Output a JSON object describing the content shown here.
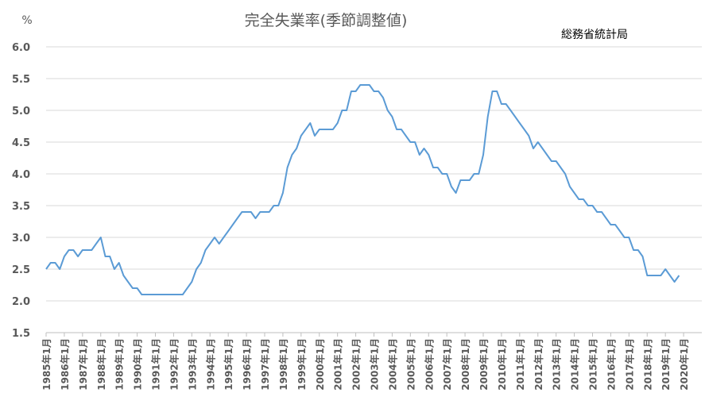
{
  "chart_data": {
    "type": "line",
    "title": "完全失業率(季節調整値)",
    "source": "総務省統計局",
    "unit": "%",
    "ylim": [
      1.5,
      6.0
    ],
    "y_ticks": [
      "6.0",
      "5.5",
      "5.0",
      "4.5",
      "4.0",
      "3.5",
      "3.0",
      "2.5",
      "2.0",
      "1.5"
    ],
    "x_ticks": [
      "1985年1月",
      "1986年1月",
      "1987年1月",
      "1988年1月",
      "1989年1月",
      "1990年1月",
      "1991年1月",
      "1992年1月",
      "1993年1月",
      "1994年1月",
      "1995年1月",
      "1996年1月",
      "1997年1月",
      "1998年1月",
      "1999年1月",
      "2000年1月",
      "2001年1月",
      "2002年1月",
      "2003年1月",
      "2004年1月",
      "2005年1月",
      "2006年1月",
      "2007年1月",
      "2008年1月",
      "2009年1月",
      "2010年1月",
      "2011年1月",
      "2012年1月",
      "2013年1月",
      "2014年1月",
      "2015年1月",
      "2016年1月",
      "2017年1月",
      "2018年1月",
      "2019年1月",
      "2020年1月"
    ],
    "grid": "horizontal",
    "line_color": "#5b9bd5",
    "series": [
      {
        "x": [
          "1985-01",
          "1985-04",
          "1985-07",
          "1985-10",
          "1986-01",
          "1986-04",
          "1986-07",
          "1986-10",
          "1987-01",
          "1987-04",
          "1987-07",
          "1987-10",
          "1988-01",
          "1988-04",
          "1988-07",
          "1988-10",
          "1989-01",
          "1989-04",
          "1989-07",
          "1989-10",
          "1990-01",
          "1990-04",
          "1990-07",
          "1990-10",
          "1991-01",
          "1991-04",
          "1991-07",
          "1991-10",
          "1992-01",
          "1992-04",
          "1992-07",
          "1992-10",
          "1993-01",
          "1993-04",
          "1993-07",
          "1993-10",
          "1994-01",
          "1994-04",
          "1994-07",
          "1994-10",
          "1995-01",
          "1995-04",
          "1995-07",
          "1995-10",
          "1996-01",
          "1996-04",
          "1996-07",
          "1996-10",
          "1997-01",
          "1997-04",
          "1997-07",
          "1997-10",
          "1998-01",
          "1998-04",
          "1998-07",
          "1998-10",
          "1999-01",
          "1999-04",
          "1999-07",
          "1999-10",
          "2000-01",
          "2000-04",
          "2000-07",
          "2000-10",
          "2001-01",
          "2001-04",
          "2001-07",
          "2001-10",
          "2002-01",
          "2002-04",
          "2002-07",
          "2002-10",
          "2003-01",
          "2003-04",
          "2003-07",
          "2003-10",
          "2004-01",
          "2004-04",
          "2004-07",
          "2004-10",
          "2005-01",
          "2005-04",
          "2005-07",
          "2005-10",
          "2006-01",
          "2006-04",
          "2006-07",
          "2006-10",
          "2007-01",
          "2007-04",
          "2007-07",
          "2007-10",
          "2008-01",
          "2008-04",
          "2008-07",
          "2008-10",
          "2009-01",
          "2009-04",
          "2009-07",
          "2009-10",
          "2010-01",
          "2010-04",
          "2010-07",
          "2010-10",
          "2011-01",
          "2011-04",
          "2011-07",
          "2011-10",
          "2012-01",
          "2012-04",
          "2012-07",
          "2012-10",
          "2013-01",
          "2013-04",
          "2013-07",
          "2013-10",
          "2014-01",
          "2014-04",
          "2014-07",
          "2014-10",
          "2015-01",
          "2015-04",
          "2015-07",
          "2015-10",
          "2016-01",
          "2016-04",
          "2016-07",
          "2016-10",
          "2017-01",
          "2017-04",
          "2017-07",
          "2017-10",
          "2018-01",
          "2018-04",
          "2018-07",
          "2018-10",
          "2019-01",
          "2019-04",
          "2019-07",
          "2019-10"
        ],
        "values": [
          2.5,
          2.6,
          2.6,
          2.5,
          2.7,
          2.8,
          2.8,
          2.7,
          2.8,
          2.8,
          2.8,
          2.9,
          3.0,
          2.7,
          2.7,
          2.5,
          2.6,
          2.4,
          2.3,
          2.2,
          2.2,
          2.1,
          2.1,
          2.1,
          2.1,
          2.1,
          2.1,
          2.1,
          2.1,
          2.1,
          2.1,
          2.2,
          2.3,
          2.5,
          2.6,
          2.8,
          2.9,
          3.0,
          2.9,
          3.0,
          3.1,
          3.2,
          3.3,
          3.4,
          3.4,
          3.4,
          3.3,
          3.4,
          3.4,
          3.4,
          3.5,
          3.5,
          3.7,
          4.1,
          4.3,
          4.4,
          4.6,
          4.7,
          4.8,
          4.6,
          4.7,
          4.7,
          4.7,
          4.7,
          4.8,
          5.0,
          5.0,
          5.3,
          5.3,
          5.4,
          5.4,
          5.4,
          5.3,
          5.3,
          5.2,
          5.0,
          4.9,
          4.7,
          4.7,
          4.6,
          4.5,
          4.5,
          4.3,
          4.4,
          4.3,
          4.1,
          4.1,
          4.0,
          4.0,
          3.8,
          3.7,
          3.9,
          3.9,
          3.9,
          4.0,
          4.0,
          4.3,
          4.9,
          5.3,
          5.3,
          5.1,
          5.1,
          5.0,
          4.9,
          4.8,
          4.7,
          4.6,
          4.4,
          4.5,
          4.4,
          4.3,
          4.2,
          4.2,
          4.1,
          4.0,
          3.8,
          3.7,
          3.6,
          3.6,
          3.5,
          3.5,
          3.4,
          3.4,
          3.3,
          3.2,
          3.2,
          3.1,
          3.0,
          3.0,
          2.8,
          2.8,
          2.7,
          2.4,
          2.4,
          2.4,
          2.4,
          2.5,
          2.4,
          2.3,
          2.4
        ]
      }
    ]
  }
}
